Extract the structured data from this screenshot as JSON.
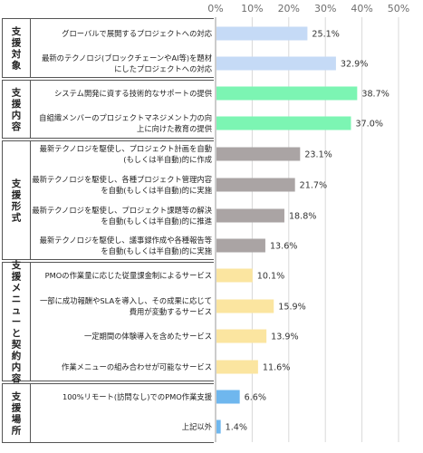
{
  "chart_data": {
    "type": "bar",
    "orientation": "horizontal",
    "title": "",
    "xlabel": "",
    "ylabel": "",
    "xlim": [
      0,
      50
    ],
    "x_ticks": [
      "0%",
      "10%",
      "20%",
      "30%",
      "40%",
      "50%"
    ],
    "grid": true,
    "groups": [
      {
        "label": "支援対象",
        "color": "#c5daf6",
        "items": [
          {
            "label": [
              "グローバルで展開するプロジェクトへの対応"
            ],
            "value": 25.1,
            "value_label": "25.1%"
          },
          {
            "label": [
              "最新のテクノロジ(ブロックチェーンやAI等)を題材",
              "にしたプロジェクトへの対応"
            ],
            "value": 32.9,
            "value_label": "32.9%"
          }
        ]
      },
      {
        "label": "支援内容",
        "color": "#7cf5b3",
        "items": [
          {
            "label": [
              "システム開発に資する技術的なサポートの提供"
            ],
            "value": 38.7,
            "value_label": "38.7%"
          },
          {
            "label": [
              "自組織メンバーのプロジェクトマネジメント力の向",
              "上に向けた教育の提供"
            ],
            "value": 37.0,
            "value_label": "37.0%"
          }
        ]
      },
      {
        "label": "支援形式",
        "color": "#aaa4a4",
        "items": [
          {
            "label": [
              "最新テクノロジを駆使し、プロジェクト計画を自動",
              "(もしくは半自動)的に作成"
            ],
            "value": 23.1,
            "value_label": "23.1%"
          },
          {
            "label": [
              "最新テクノロジを駆使し、各種プロジェクト管理内容",
              "を自動(もしくは半自動)的に実施"
            ],
            "value": 21.7,
            "value_label": "21.7%"
          },
          {
            "label": [
              "最新テクノロジを駆使し、プロジェクト課題等の解決",
              "を自動(もしくは半自動)的に推進"
            ],
            "value": 18.8,
            "value_label": "18.8%"
          },
          {
            "label": [
              "最新テクノロジを駆使し、議事録作成や各種報告等",
              "を自動(もしくは半自動)的に実施"
            ],
            "value": 13.6,
            "value_label": "13.6%"
          }
        ]
      },
      {
        "label": "支援メニューと契約内容",
        "color": "#fbe5a0",
        "items": [
          {
            "label": [
              "PMOの作業量に応じた従量課金制によるサービス"
            ],
            "value": 10.1,
            "value_label": "10.1%"
          },
          {
            "label": [
              "一部に成功報酬やSLAを導入し、その成果に応じて",
              "費用が変動するサービス"
            ],
            "value": 15.9,
            "value_label": "15.9%"
          },
          {
            "label": [
              "一定期間の体験導入を含めたサービス"
            ],
            "value": 13.9,
            "value_label": "13.9%"
          },
          {
            "label": [
              "作業メニューの組み合わせが可能なサービス"
            ],
            "value": 11.6,
            "value_label": "11.6%"
          }
        ]
      },
      {
        "label": "支援場所",
        "color": "#6fb7ee",
        "items": [
          {
            "label": [
              "100%リモート(訪問なし)でのPMO作業支援"
            ],
            "value": 6.6,
            "value_label": "6.6%"
          },
          {
            "label": [
              "上記以外"
            ],
            "value": 1.4,
            "value_label": "1.4%"
          }
        ]
      }
    ]
  }
}
